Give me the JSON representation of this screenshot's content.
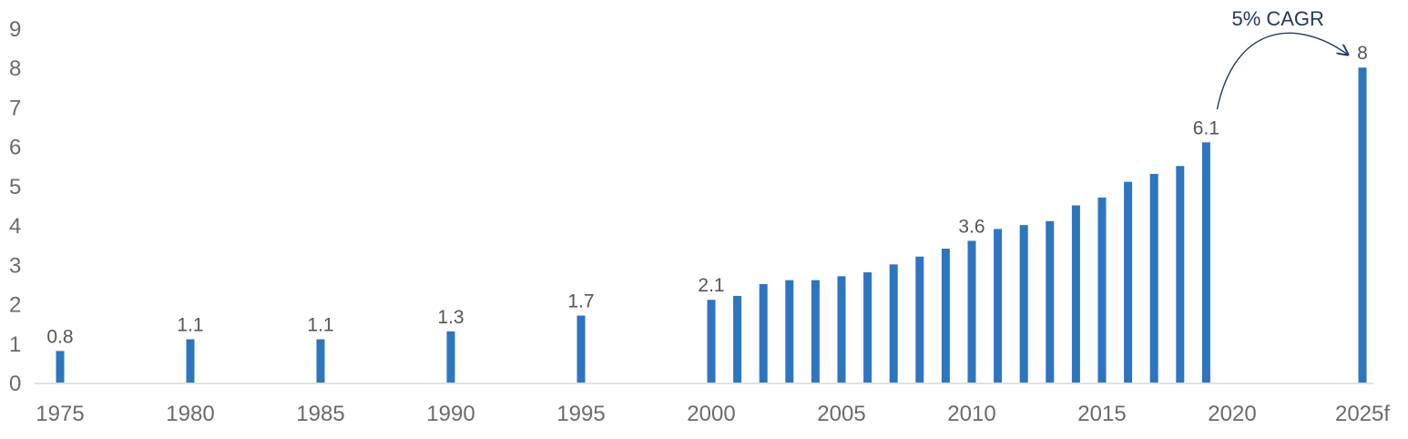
{
  "chart_data": {
    "type": "bar",
    "title": "",
    "xlabel": "",
    "ylabel": "",
    "ylim": [
      0,
      9
    ],
    "yticks": [
      0,
      1,
      2,
      3,
      4,
      5,
      6,
      7,
      8,
      9
    ],
    "grid": false,
    "legend": "none",
    "x_tick_labels": [
      "1975",
      "1980",
      "1985",
      "1990",
      "1995",
      "2000",
      "2005",
      "2010",
      "2015",
      "2020",
      "2025f"
    ],
    "points": [
      {
        "x": "1975",
        "value": 0.8
      },
      {
        "x": "1980",
        "value": 1.1
      },
      {
        "x": "1985",
        "value": 1.1
      },
      {
        "x": "1990",
        "value": 1.3
      },
      {
        "x": "1995",
        "value": 1.7
      },
      {
        "x": "2000",
        "value": 2.1
      },
      {
        "x": "2001",
        "value": 2.2
      },
      {
        "x": "2002",
        "value": 2.5
      },
      {
        "x": "2003",
        "value": 2.6
      },
      {
        "x": "2004",
        "value": 2.6
      },
      {
        "x": "2005",
        "value": 2.7
      },
      {
        "x": "2006",
        "value": 2.8
      },
      {
        "x": "2007",
        "value": 3.0
      },
      {
        "x": "2008",
        "value": 3.2
      },
      {
        "x": "2009",
        "value": 3.4
      },
      {
        "x": "2010",
        "value": 3.6
      },
      {
        "x": "2011",
        "value": 3.9
      },
      {
        "x": "2012",
        "value": 4.0
      },
      {
        "x": "2013",
        "value": 4.1
      },
      {
        "x": "2014",
        "value": 4.5
      },
      {
        "x": "2015",
        "value": 4.7
      },
      {
        "x": "2016",
        "value": 5.1
      },
      {
        "x": "2017",
        "value": 5.3
      },
      {
        "x": "2018",
        "value": 5.5
      },
      {
        "x": "2019",
        "value": 6.1
      },
      {
        "x": "2025f",
        "value": 8.0
      }
    ],
    "data_labels": [
      {
        "x": "1975",
        "text": "0.8"
      },
      {
        "x": "1980",
        "text": "1.1"
      },
      {
        "x": "1985",
        "text": "1.1"
      },
      {
        "x": "1990",
        "text": "1.3"
      },
      {
        "x": "1995",
        "text": "1.7"
      },
      {
        "x": "2000",
        "text": "2.1"
      },
      {
        "x": "2010",
        "text": "3.6"
      },
      {
        "x": "2019",
        "text": "6.1"
      },
      {
        "x": "2025f",
        "text": "8"
      }
    ],
    "annotation": {
      "text": "5% CAGR",
      "from": "2019",
      "to": "2025f"
    },
    "colors": {
      "bar": "#2e75c0",
      "annotation": "#1f3864",
      "axis": "#d9d9d9",
      "tick_text": "#6b6b6b",
      "label_text": "#555555"
    }
  }
}
